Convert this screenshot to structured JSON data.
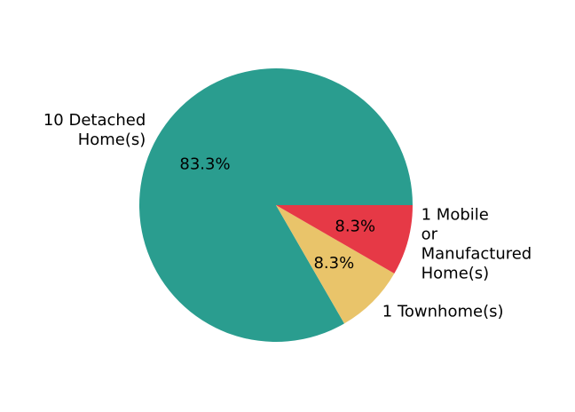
{
  "chart_data": {
    "type": "pie",
    "title": "",
    "slices": [
      {
        "label_lines": [
          "10 Detached",
          "Home(s)"
        ],
        "value": 10,
        "pct": "83.3%",
        "color": "#2a9d8f"
      },
      {
        "label_lines": [
          "1 Townhome(s)"
        ],
        "value": 1,
        "pct": "8.3%",
        "color": "#e9c46a"
      },
      {
        "label_lines": [
          "1 Mobile",
          "or",
          "Manufactured",
          "Home(s)"
        ],
        "value": 1,
        "pct": "8.3%",
        "color": "#e63946"
      }
    ],
    "start_angle_deg": 0,
    "direction": "counterclockwise"
  }
}
